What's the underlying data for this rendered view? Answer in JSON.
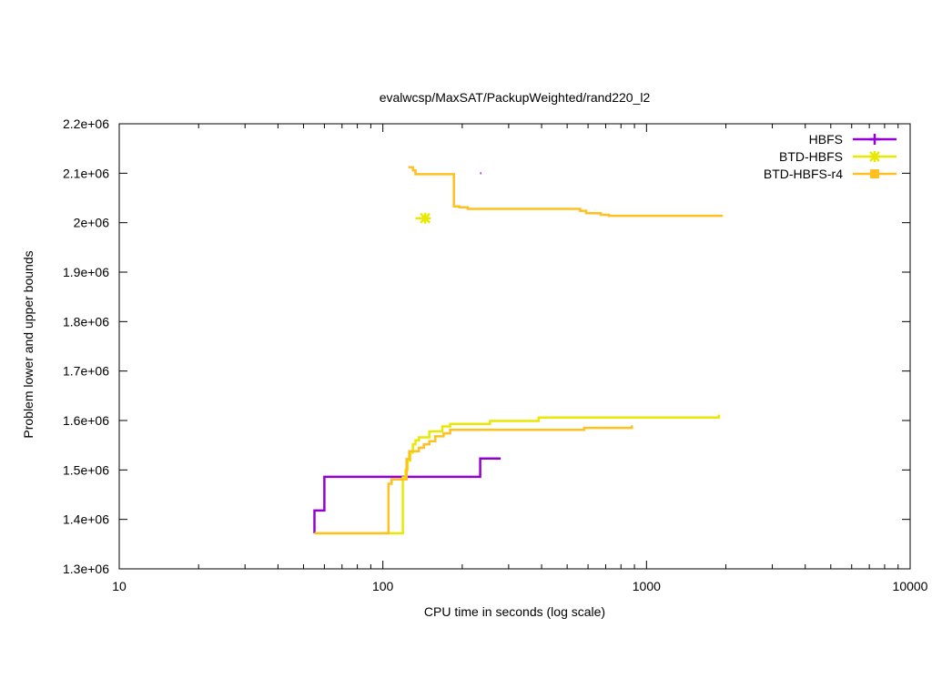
{
  "chart_data": {
    "type": "line",
    "title": "evalwcsp/MaxSAT/PackupWeighted/rand220_l2",
    "xlabel": "CPU time in seconds (log scale)",
    "ylabel": "Problem lower and upper bounds",
    "x_scale": "log",
    "xlim": [
      10,
      10000
    ],
    "ylim": [
      1300000,
      2200000
    ],
    "x_ticks": [
      10,
      100,
      1000,
      10000
    ],
    "x_tick_labels": [
      "10",
      "100",
      "1000",
      "10000"
    ],
    "y_ticks": [
      1300000,
      1400000,
      1500000,
      1600000,
      1700000,
      1800000,
      1900000,
      2000000,
      2100000,
      2200000
    ],
    "y_tick_labels": [
      "1.3e+06",
      "1.4e+06",
      "1.5e+06",
      "1.6e+06",
      "1.7e+06",
      "1.8e+06",
      "1.9e+06",
      "2e+06",
      "2.1e+06",
      "2.2e+06"
    ],
    "legend_position": "top-right",
    "grid": false,
    "series": [
      {
        "name": "HBFS",
        "color": "#9400d3",
        "marker": "plus",
        "lower": [
          [
            55,
            1372000
          ],
          [
            55,
            1418000
          ],
          [
            60,
            1418000
          ],
          [
            60,
            1486000
          ],
          [
            234,
            1486000
          ],
          [
            234,
            1523000
          ],
          [
            280,
            1523000
          ]
        ],
        "upper": [
          [
            234,
            2100000
          ],
          [
            236,
            2100000
          ]
        ]
      },
      {
        "name": "BTD-HBFS",
        "color": "#e8e800",
        "marker": "star",
        "lower": [
          [
            55,
            1372000
          ],
          [
            119,
            1372000
          ],
          [
            119,
            1485000
          ],
          [
            122,
            1485000
          ],
          [
            122,
            1500000
          ],
          [
            124,
            1500000
          ],
          [
            124,
            1519000
          ],
          [
            127,
            1519000
          ],
          [
            127,
            1535000
          ],
          [
            130,
            1535000
          ],
          [
            130,
            1552000
          ],
          [
            133,
            1552000
          ],
          [
            133,
            1560000
          ],
          [
            137,
            1560000
          ],
          [
            137,
            1566000
          ],
          [
            150,
            1566000
          ],
          [
            150,
            1578000
          ],
          [
            168,
            1578000
          ],
          [
            168,
            1588000
          ],
          [
            180,
            1588000
          ],
          [
            180,
            1593000
          ],
          [
            255,
            1593000
          ],
          [
            255,
            1599000
          ],
          [
            390,
            1599000
          ],
          [
            390,
            1606000
          ],
          [
            1880,
            1606000
          ],
          [
            1880,
            1612000
          ]
        ],
        "upper": [
          [
            133,
            2009000
          ],
          [
            147,
            2009000
          ]
        ]
      },
      {
        "name": "BTD-HBFS-r4",
        "color": "#ffc020",
        "marker": "square",
        "lower": [
          [
            55,
            1372000
          ],
          [
            105,
            1372000
          ],
          [
            105,
            1472000
          ],
          [
            108,
            1472000
          ],
          [
            108,
            1481000
          ],
          [
            123,
            1481000
          ],
          [
            123,
            1522000
          ],
          [
            126,
            1522000
          ],
          [
            126,
            1538000
          ],
          [
            137,
            1538000
          ],
          [
            137,
            1545000
          ],
          [
            143,
            1545000
          ],
          [
            143,
            1552000
          ],
          [
            150,
            1552000
          ],
          [
            150,
            1558000
          ],
          [
            158,
            1558000
          ],
          [
            158,
            1568000
          ],
          [
            170,
            1568000
          ],
          [
            170,
            1574000
          ],
          [
            180,
            1574000
          ],
          [
            180,
            1581000
          ],
          [
            580,
            1581000
          ],
          [
            580,
            1585000
          ],
          [
            880,
            1585000
          ],
          [
            880,
            1590000
          ]
        ],
        "upper": [
          [
            125,
            2112000
          ],
          [
            130,
            2112000
          ],
          [
            130,
            2106000
          ],
          [
            133,
            2106000
          ],
          [
            133,
            2098000
          ],
          [
            186,
            2098000
          ],
          [
            186,
            2033000
          ],
          [
            195,
            2033000
          ],
          [
            195,
            2031000
          ],
          [
            210,
            2031000
          ],
          [
            210,
            2028000
          ],
          [
            560,
            2028000
          ],
          [
            560,
            2024000
          ],
          [
            590,
            2024000
          ],
          [
            590,
            2019000
          ],
          [
            670,
            2019000
          ],
          [
            670,
            2016000
          ],
          [
            720,
            2016000
          ],
          [
            720,
            2014000
          ],
          [
            1950,
            2014000
          ]
        ]
      }
    ]
  }
}
